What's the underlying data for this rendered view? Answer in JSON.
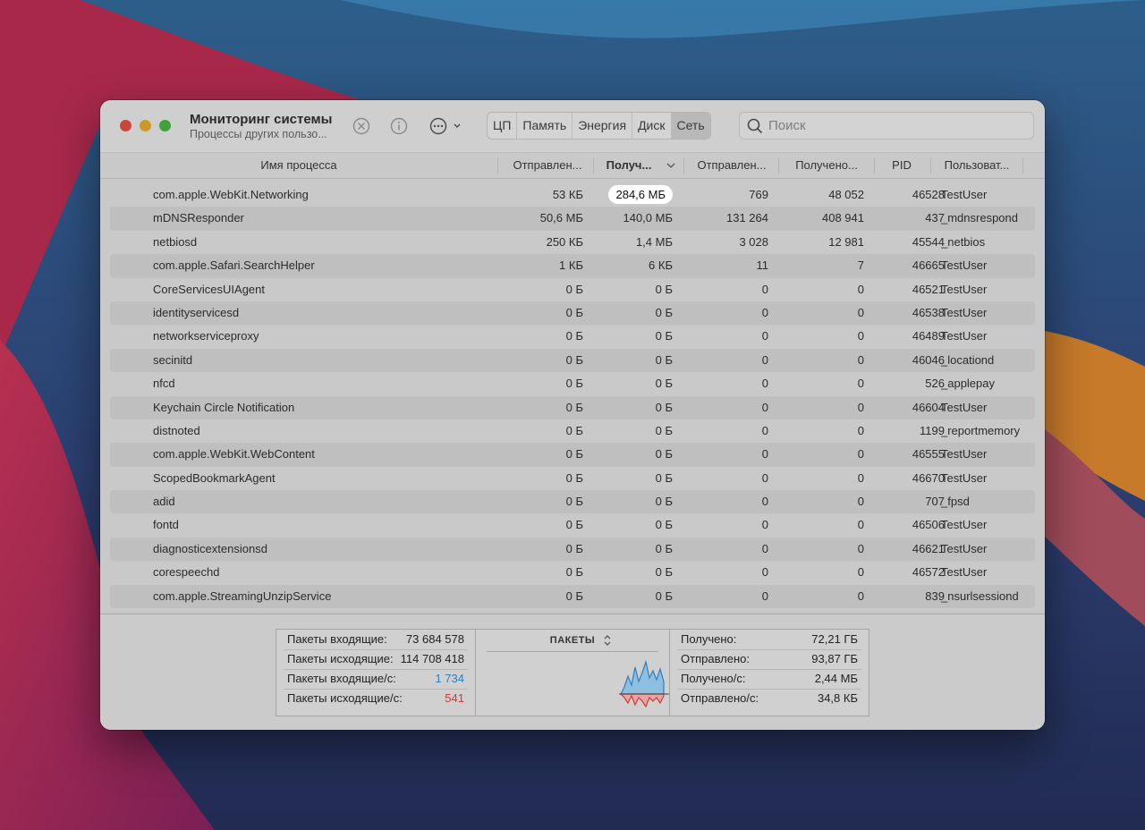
{
  "window": {
    "title": "Мониторинг системы",
    "subtitle": "Процессы других пользо..."
  },
  "toolbar": {
    "stop_icon": "xmark-circle-icon",
    "info_icon": "info-circle-icon",
    "more_icon": "ellipsis-circle-icon",
    "tabs": [
      {
        "label": "ЦП",
        "active": false
      },
      {
        "label": "Память",
        "active": false
      },
      {
        "label": "Энергия",
        "active": false
      },
      {
        "label": "Диск",
        "active": false
      },
      {
        "label": "Сеть",
        "active": true
      }
    ],
    "search_placeholder": "Поиск"
  },
  "columns": {
    "name": "Имя процесса",
    "sent_bytes": "Отправлен...",
    "recv_bytes": "Получ...",
    "sent_packets": "Отправлен...",
    "recv_packets": "Получено...",
    "pid": "PID",
    "user": "Пользоват..."
  },
  "rows": [
    {
      "name": "com.apple.WebKit.Networking",
      "sent": "53 КБ",
      "recv": "284,6 МБ",
      "psent": "769",
      "precv": "48 052",
      "pid": "46528",
      "user": "TestUser"
    },
    {
      "name": "mDNSResponder",
      "sent": "50,6 МБ",
      "recv": "140,0 МБ",
      "psent": "131 264",
      "precv": "408 941",
      "pid": "437",
      "user": "_mdnsrespond"
    },
    {
      "name": "netbiosd",
      "sent": "250 КБ",
      "recv": "1,4 МБ",
      "psent": "3 028",
      "precv": "12 981",
      "pid": "45544",
      "user": "_netbios"
    },
    {
      "name": "com.apple.Safari.SearchHelper",
      "sent": "1 КБ",
      "recv": "6 КБ",
      "psent": "11",
      "precv": "7",
      "pid": "46665",
      "user": "TestUser"
    },
    {
      "name": "CoreServicesUIAgent",
      "sent": "0 Б",
      "recv": "0 Б",
      "psent": "0",
      "precv": "0",
      "pid": "46521",
      "user": "TestUser"
    },
    {
      "name": "identityservicesd",
      "sent": "0 Б",
      "recv": "0 Б",
      "psent": "0",
      "precv": "0",
      "pid": "46538",
      "user": "TestUser"
    },
    {
      "name": "networkserviceproxy",
      "sent": "0 Б",
      "recv": "0 Б",
      "psent": "0",
      "precv": "0",
      "pid": "46489",
      "user": "TestUser"
    },
    {
      "name": "secinitd",
      "sent": "0 Б",
      "recv": "0 Б",
      "psent": "0",
      "precv": "0",
      "pid": "46046",
      "user": "_locationd"
    },
    {
      "name": "nfcd",
      "sent": "0 Б",
      "recv": "0 Б",
      "psent": "0",
      "precv": "0",
      "pid": "526",
      "user": "_applepay"
    },
    {
      "name": "Keychain Circle Notification",
      "sent": "0 Б",
      "recv": "0 Б",
      "psent": "0",
      "precv": "0",
      "pid": "46604",
      "user": "TestUser"
    },
    {
      "name": "distnoted",
      "sent": "0 Б",
      "recv": "0 Б",
      "psent": "0",
      "precv": "0",
      "pid": "1199",
      "user": "_reportmemory"
    },
    {
      "name": "com.apple.WebKit.WebContent",
      "sent": "0 Б",
      "recv": "0 Б",
      "psent": "0",
      "precv": "0",
      "pid": "46555",
      "user": "TestUser"
    },
    {
      "name": "ScopedBookmarkAgent",
      "sent": "0 Б",
      "recv": "0 Б",
      "psent": "0",
      "precv": "0",
      "pid": "46670",
      "user": "TestUser"
    },
    {
      "name": "adid",
      "sent": "0 Б",
      "recv": "0 Б",
      "psent": "0",
      "precv": "0",
      "pid": "707",
      "user": "_fpsd"
    },
    {
      "name": "fontd",
      "sent": "0 Б",
      "recv": "0 Б",
      "psent": "0",
      "precv": "0",
      "pid": "46506",
      "user": "TestUser"
    },
    {
      "name": "diagnosticextensionsd",
      "sent": "0 Б",
      "recv": "0 Б",
      "psent": "0",
      "precv": "0",
      "pid": "46621",
      "user": "TestUser"
    },
    {
      "name": "corespeechd",
      "sent": "0 Б",
      "recv": "0 Б",
      "psent": "0",
      "precv": "0",
      "pid": "46572",
      "user": "TestUser"
    },
    {
      "name": "com.apple.StreamingUnzipService",
      "sent": "0 Б",
      "recv": "0 Б",
      "psent": "0",
      "precv": "0",
      "pid": "839",
      "user": "_nsurlsessiond"
    }
  ],
  "footer": {
    "left": [
      {
        "label": "Пакеты входящие:",
        "value": "73 684 578",
        "color": ""
      },
      {
        "label": "Пакеты исходящие:",
        "value": "114 708 418",
        "color": ""
      },
      {
        "label": "Пакеты входящие/с:",
        "value": "1 734",
        "color": "#2f7fbf"
      },
      {
        "label": "Пакеты исходящие/с:",
        "value": "541",
        "color": "#d23a3a"
      }
    ],
    "graph_title": "ПАКЕТЫ",
    "right": [
      {
        "label": "Получено:",
        "value": "72,21 ГБ"
      },
      {
        "label": "Отправлено:",
        "value": "93,87 ГБ"
      },
      {
        "label": "Получено/с:",
        "value": "2,44 МБ"
      },
      {
        "label": "Отправлено/с:",
        "value": "34,8 КБ"
      }
    ]
  },
  "colors": {
    "graph_in": "#2f7fbf",
    "graph_out": "#d23a3a"
  }
}
